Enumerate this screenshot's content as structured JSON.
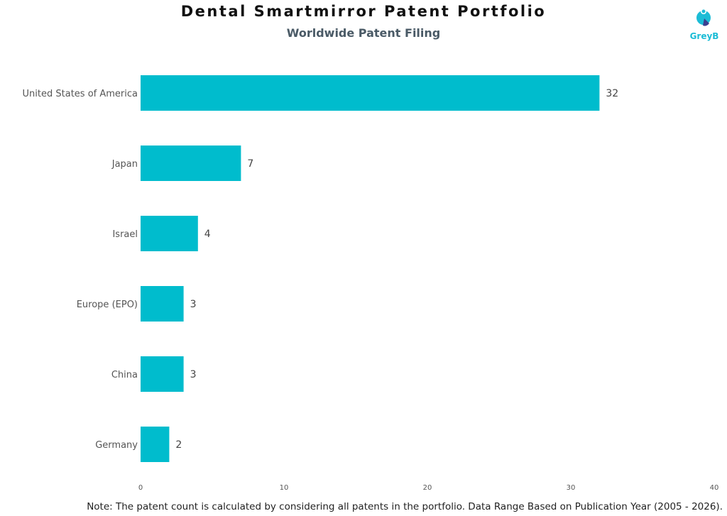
{
  "chart_data": {
    "type": "bar",
    "orientation": "horizontal",
    "title": "Dental Smartmirror Patent Portfolio",
    "subtitle": "Worldwide Patent Filing",
    "categories": [
      "United States of America",
      "Japan",
      "Israel",
      "Europe (EPO)",
      "China",
      "Germany"
    ],
    "values": [
      32,
      7,
      4,
      3,
      3,
      2
    ],
    "xlim": [
      0,
      40
    ],
    "xticks": [
      0,
      10,
      20,
      30,
      40
    ],
    "bar_color": "#00bccd",
    "grid": false,
    "legend": "none"
  },
  "logo": {
    "text": "GreyB",
    "color": "#1bbcd6",
    "accent": "#3a3f8f"
  },
  "footer": {
    "note": "Note: The patent count is calculated by considering all patents in the portfolio. Data Range Based on Publication Year (2005 - 2026)."
  }
}
